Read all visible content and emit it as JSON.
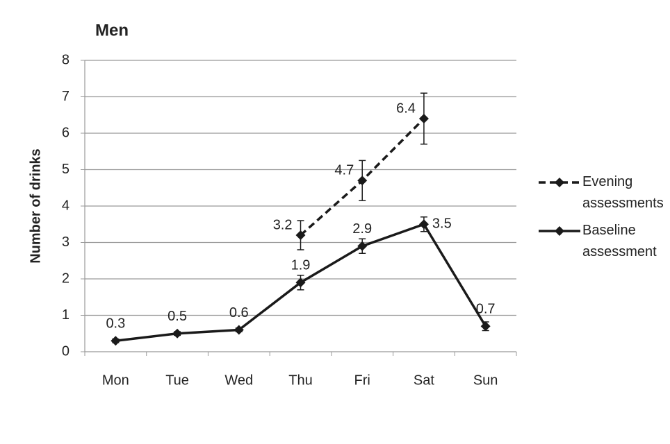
{
  "chart_data": {
    "type": "line",
    "title": "Men",
    "y_label": "Number of drinks",
    "categories": [
      "Mon",
      "Tue",
      "Wed",
      "Thu",
      "Fri",
      "Sat",
      "Sun"
    ],
    "series": [
      {
        "name": "Evening assessments",
        "color": "#1a1a1a",
        "dashed": true,
        "values": [
          null,
          null,
          null,
          3.2,
          4.7,
          6.4,
          null
        ],
        "errors": [
          null,
          null,
          null,
          0.4,
          0.55,
          0.7,
          null
        ]
      },
      {
        "name": "Baseline assessment",
        "color": "#1a1a1a",
        "dashed": false,
        "values": [
          0.3,
          0.5,
          0.6,
          1.9,
          2.9,
          3.5,
          0.7
        ],
        "errors": [
          0.05,
          0.05,
          0.05,
          0.2,
          0.2,
          0.2,
          0.12
        ]
      }
    ],
    "ylim": [
      0,
      8
    ],
    "yticks": [
      0,
      1,
      2,
      3,
      4,
      5,
      6,
      7,
      8
    ],
    "grid": true,
    "legend": "right"
  }
}
